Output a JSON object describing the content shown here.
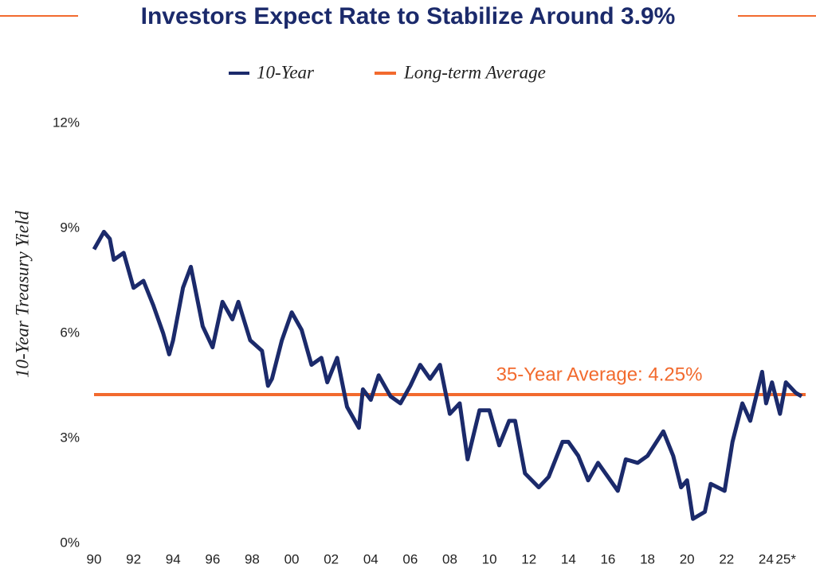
{
  "chart_data": {
    "type": "line",
    "title": "Investors Expect Rate to Stabilize Around 3.9%",
    "y_label": "10-Year Treasury Yield",
    "x": [
      1990.0,
      1990.5,
      1990.8,
      1991.0,
      1991.5,
      1992.0,
      1992.5,
      1993.0,
      1993.5,
      1993.8,
      1994.0,
      1994.5,
      1994.9,
      1995.5,
      1996.0,
      1996.5,
      1997.0,
      1997.3,
      1997.9,
      1998.5,
      1998.8,
      1999.0,
      1999.5,
      2000.0,
      2000.5,
      2001.0,
      2001.5,
      2001.8,
      2002.3,
      2002.8,
      2003.4,
      2003.6,
      2004.0,
      2004.4,
      2005.0,
      2005.5,
      2006.0,
      2006.5,
      2007.0,
      2007.5,
      2008.0,
      2008.5,
      2008.9,
      2009.5,
      2010.0,
      2010.5,
      2011.0,
      2011.3,
      2011.8,
      2012.5,
      2013.0,
      2013.7,
      2014.0,
      2014.5,
      2015.0,
      2015.5,
      2016.5,
      2016.9,
      2017.5,
      2018.0,
      2018.8,
      2019.3,
      2019.7,
      2020.0,
      2020.3,
      2020.9,
      2021.2,
      2021.9,
      2022.3,
      2022.8,
      2023.2,
      2023.8,
      2024.0,
      2024.3,
      2024.7,
      2025.0,
      2025.5,
      2025.8
    ],
    "series": [
      {
        "name": "10-Year",
        "color": "#1b2a6b",
        "values": [
          8.4,
          8.9,
          8.7,
          8.1,
          8.3,
          7.3,
          7.5,
          6.8,
          6.0,
          5.4,
          5.8,
          7.3,
          7.9,
          6.2,
          5.6,
          6.9,
          6.4,
          6.9,
          5.8,
          5.5,
          4.5,
          4.7,
          5.8,
          6.6,
          6.1,
          5.1,
          5.3,
          4.6,
          5.3,
          3.9,
          3.3,
          4.4,
          4.1,
          4.8,
          4.2,
          4.0,
          4.5,
          5.1,
          4.7,
          5.1,
          3.7,
          4.0,
          2.4,
          3.8,
          3.8,
          2.8,
          3.5,
          3.5,
          2.0,
          1.6,
          1.9,
          2.9,
          2.9,
          2.5,
          1.8,
          2.3,
          1.5,
          2.4,
          2.3,
          2.5,
          3.2,
          2.5,
          1.6,
          1.8,
          0.7,
          0.9,
          1.7,
          1.5,
          2.9,
          4.0,
          3.5,
          4.9,
          4.0,
          4.6,
          3.7,
          4.6,
          4.3,
          4.2
        ]
      }
    ],
    "average": {
      "name": "Long-term Average",
      "color": "#f26a2e",
      "value": 4.25,
      "label": "35-Year Average: 4.25%"
    },
    "xlim": [
      1990,
      2026
    ],
    "xticks": [
      {
        "value": 1990,
        "label": "90"
      },
      {
        "value": 1992,
        "label": "92"
      },
      {
        "value": 1994,
        "label": "94"
      },
      {
        "value": 1996,
        "label": "96"
      },
      {
        "value": 1998,
        "label": "98"
      },
      {
        "value": 2000,
        "label": "00"
      },
      {
        "value": 2002,
        "label": "02"
      },
      {
        "value": 2004,
        "label": "04"
      },
      {
        "value": 2006,
        "label": "06"
      },
      {
        "value": 2008,
        "label": "08"
      },
      {
        "value": 2010,
        "label": "10"
      },
      {
        "value": 2012,
        "label": "12"
      },
      {
        "value": 2014,
        "label": "14"
      },
      {
        "value": 2016,
        "label": "16"
      },
      {
        "value": 2018,
        "label": "18"
      },
      {
        "value": 2020,
        "label": "20"
      },
      {
        "value": 2022,
        "label": "22"
      },
      {
        "value": 2024,
        "label": "24"
      },
      {
        "value": 2025,
        "label": "25*"
      }
    ],
    "ylim": [
      0,
      12
    ],
    "yticks": [
      {
        "value": 0,
        "label": "0%"
      },
      {
        "value": 3,
        "label": "3%"
      },
      {
        "value": 6,
        "label": "6%"
      },
      {
        "value": 9,
        "label": "9%"
      },
      {
        "value": 12,
        "label": "12%"
      }
    ],
    "grid": false
  }
}
